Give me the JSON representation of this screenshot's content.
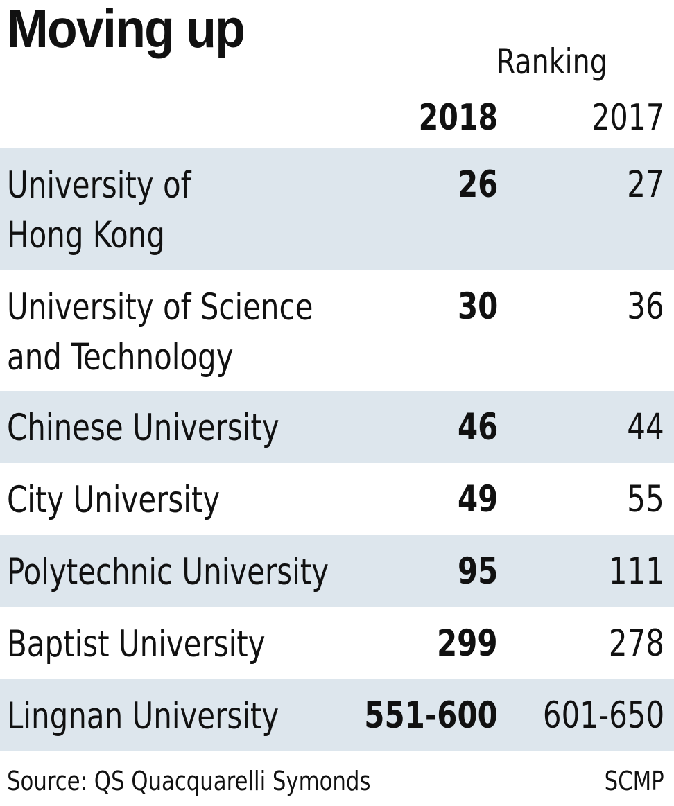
{
  "title": "Moving up",
  "chart_data": {
    "type": "table",
    "header_group": "Ranking",
    "columns": [
      "2018",
      "2017"
    ],
    "rows": [
      {
        "name_lines": [
          "University of",
          "Hong Kong"
        ],
        "r2018": "26",
        "r2017": "27"
      },
      {
        "name_lines": [
          "University of Science",
          "and Technology"
        ],
        "r2018": "30",
        "r2017": "36"
      },
      {
        "name_lines": [
          "Chinese University"
        ],
        "r2018": "46",
        "r2017": "44"
      },
      {
        "name_lines": [
          "City University"
        ],
        "r2018": "49",
        "r2017": "55"
      },
      {
        "name_lines": [
          "Polytechnic University"
        ],
        "r2018": "95",
        "r2017": "111"
      },
      {
        "name_lines": [
          "Baptist University"
        ],
        "r2018": "299",
        "r2017": "278"
      },
      {
        "name_lines": [
          "Lingnan University"
        ],
        "r2018": "551-600",
        "r2017": "601-650"
      }
    ]
  },
  "footer": {
    "source": "Source: QS Quacquarelli Symonds",
    "credit": "SCMP"
  },
  "colors": {
    "row_shade": "#dde6ed",
    "text": "#111111"
  }
}
